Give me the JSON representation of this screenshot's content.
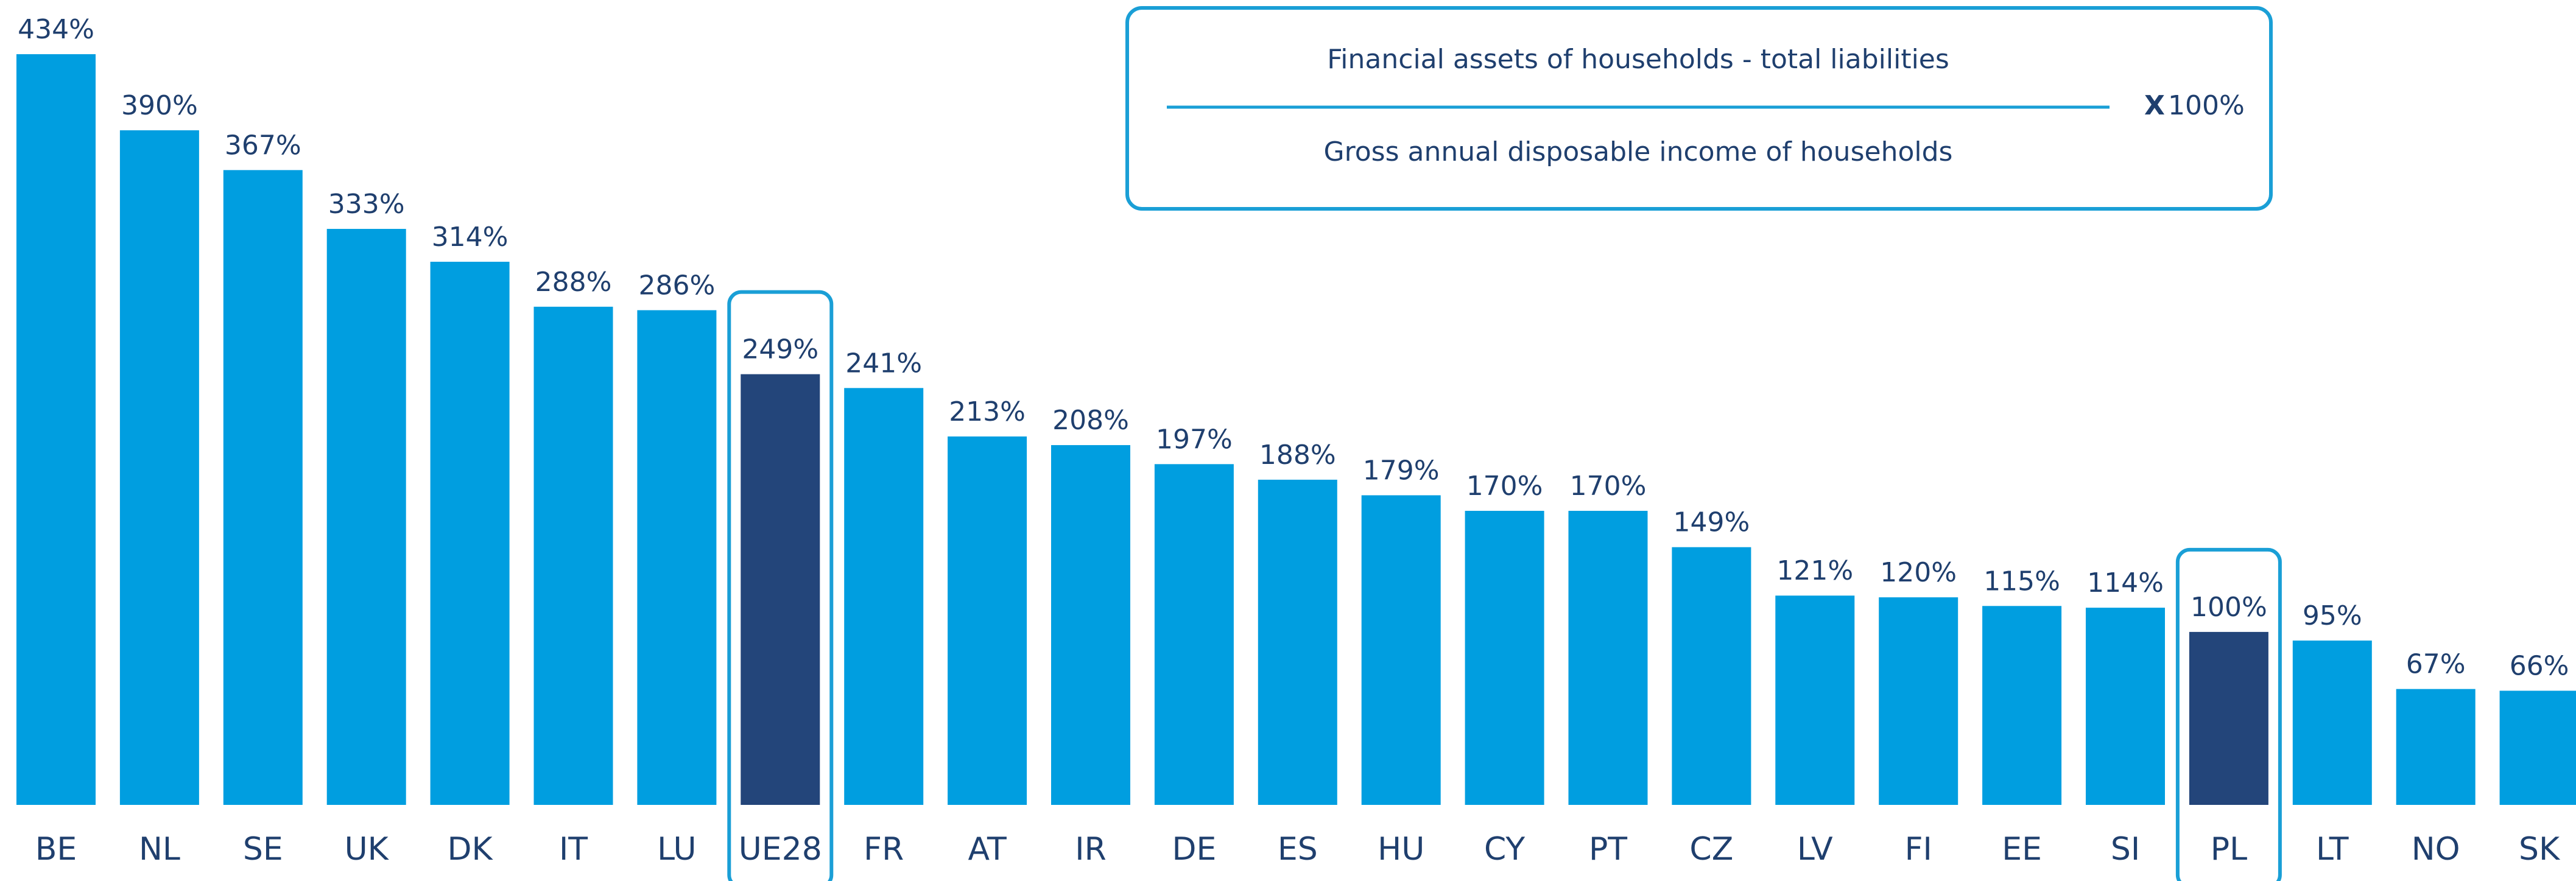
{
  "chart_data": {
    "type": "bar",
    "categories": [
      "BE",
      "NL",
      "SE",
      "UK",
      "DK",
      "IT",
      "LU",
      "UE28",
      "FR",
      "AT",
      "IR",
      "DE",
      "ES",
      "HU",
      "CY",
      "PT",
      "CZ",
      "LV",
      "FI",
      "EE",
      "SI",
      "PL",
      "LT",
      "NO",
      "SK"
    ],
    "values": [
      434,
      390,
      367,
      333,
      314,
      288,
      286,
      249,
      241,
      213,
      208,
      197,
      188,
      179,
      170,
      170,
      149,
      121,
      120,
      115,
      114,
      100,
      95,
      67,
      66
    ],
    "value_labels": [
      "434%",
      "390%",
      "367%",
      "333%",
      "314%",
      "288%",
      "286%",
      "249%",
      "241%",
      "213%",
      "208%",
      "197%",
      "188%",
      "179%",
      "170%",
      "170%",
      "149%",
      "121%",
      "120%",
      "115%",
      "114%",
      "100%",
      "95%",
      "67%",
      "66%"
    ],
    "highlight_color": "#23457a",
    "colors": [
      "#009ee0",
      "#009ee0",
      "#009ee0",
      "#009ee0",
      "#009ee0",
      "#009ee0",
      "#009ee0",
      "#23457a",
      "#009ee0",
      "#009ee0",
      "#009ee0",
      "#009ee0",
      "#009ee0",
      "#009ee0",
      "#009ee0",
      "#009ee0",
      "#009ee0",
      "#009ee0",
      "#009ee0",
      "#009ee0",
      "#009ee0",
      "#23457a",
      "#009ee0",
      "#009ee0",
      "#009ee0"
    ],
    "formula": {
      "numerator": "Financial assets of households - total liabilities",
      "denominator": "Gross annual disposable income of households",
      "times": "X",
      "factor": "100%"
    }
  }
}
